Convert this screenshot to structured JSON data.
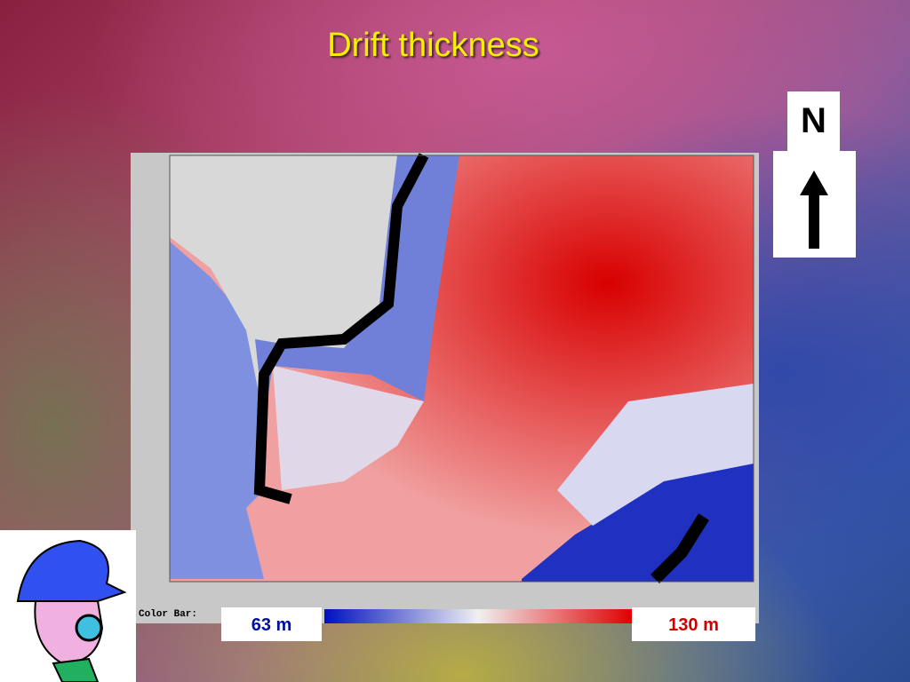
{
  "slide": {
    "title": "Drift thickness",
    "north_label": "N",
    "color_bar_caption": "Color Bar:",
    "legend_min": "63 m",
    "legend_max": "130 m"
  }
}
